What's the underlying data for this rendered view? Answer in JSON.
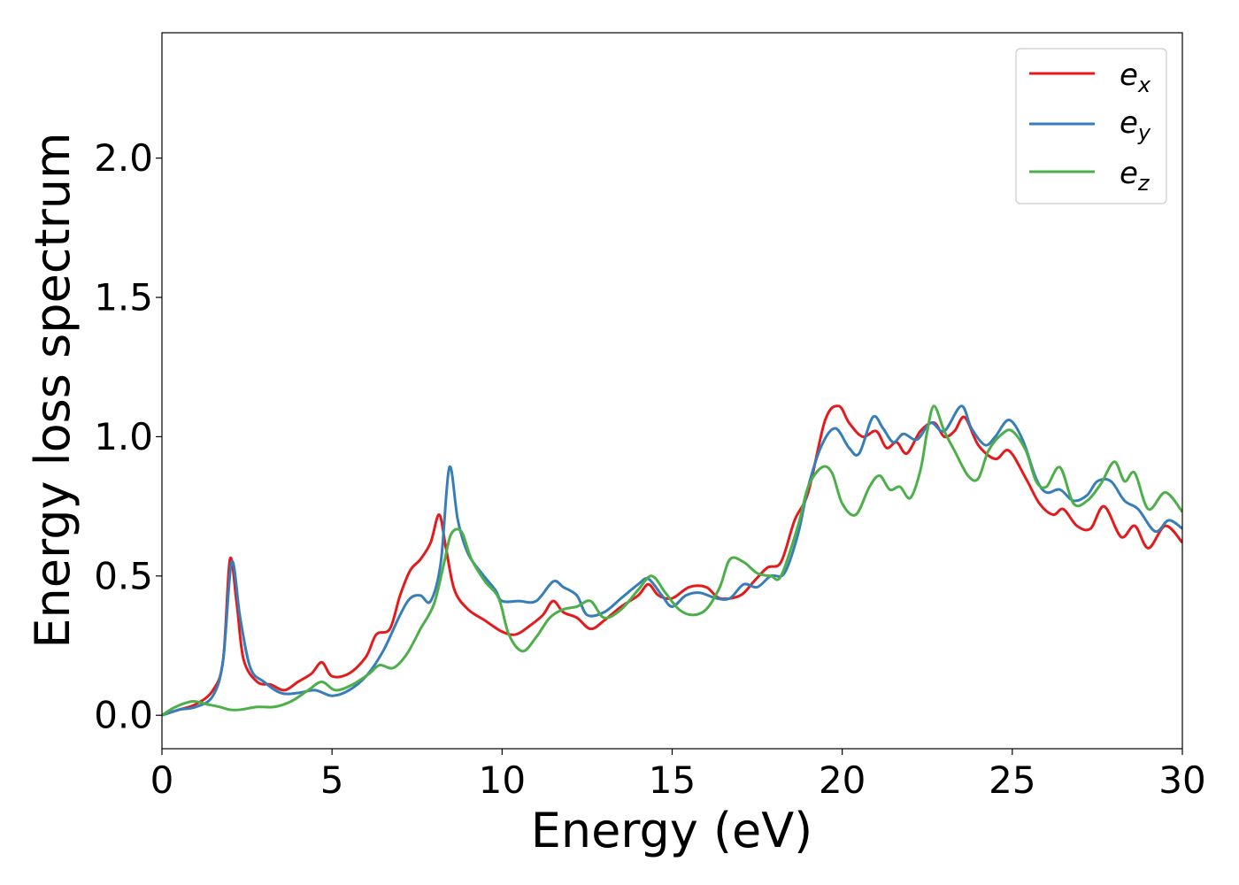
{
  "chart_data": {
    "type": "line",
    "title": "",
    "xlabel": "Energy (eV)",
    "ylabel": "Energy loss spectrum",
    "xlim": [
      0,
      30
    ],
    "ylim": [
      -0.12,
      2.45
    ],
    "xticks": [
      0,
      5,
      10,
      15,
      20,
      25,
      30
    ],
    "xtick_labels": [
      "0",
      "5",
      "10",
      "15",
      "20",
      "25",
      "30"
    ],
    "yticks": [
      0.0,
      0.5,
      1.0,
      1.5,
      2.0
    ],
    "ytick_labels": [
      "0.0",
      "0.5",
      "1.0",
      "1.5",
      "2.0"
    ],
    "grid": false,
    "legend_position": "top-right",
    "series": [
      {
        "name": "e_x",
        "legend_base": "e",
        "legend_sub": "x",
        "color": "#e41a1c",
        "points": [
          [
            0,
            0
          ],
          [
            0.5,
            0.02
          ],
          [
            1.0,
            0.04
          ],
          [
            1.5,
            0.09
          ],
          [
            1.8,
            0.2
          ],
          [
            2.0,
            0.56
          ],
          [
            2.2,
            0.4
          ],
          [
            2.4,
            0.2
          ],
          [
            2.8,
            0.12
          ],
          [
            3.2,
            0.11
          ],
          [
            3.6,
            0.09
          ],
          [
            4.0,
            0.12
          ],
          [
            4.4,
            0.15
          ],
          [
            4.7,
            0.19
          ],
          [
            5.0,
            0.14
          ],
          [
            5.5,
            0.15
          ],
          [
            6.0,
            0.21
          ],
          [
            6.3,
            0.29
          ],
          [
            6.7,
            0.31
          ],
          [
            7.0,
            0.43
          ],
          [
            7.3,
            0.52
          ],
          [
            7.6,
            0.56
          ],
          [
            7.9,
            0.62
          ],
          [
            8.15,
            0.72
          ],
          [
            8.35,
            0.6
          ],
          [
            8.6,
            0.45
          ],
          [
            9.0,
            0.38
          ],
          [
            9.5,
            0.34
          ],
          [
            10.0,
            0.3
          ],
          [
            10.4,
            0.29
          ],
          [
            10.8,
            0.32
          ],
          [
            11.2,
            0.36
          ],
          [
            11.5,
            0.41
          ],
          [
            11.8,
            0.37
          ],
          [
            12.2,
            0.35
          ],
          [
            12.6,
            0.31
          ],
          [
            13.0,
            0.34
          ],
          [
            13.5,
            0.39
          ],
          [
            14.0,
            0.43
          ],
          [
            14.3,
            0.47
          ],
          [
            14.6,
            0.43
          ],
          [
            15.0,
            0.42
          ],
          [
            15.5,
            0.46
          ],
          [
            16.0,
            0.46
          ],
          [
            16.4,
            0.42
          ],
          [
            17.0,
            0.43
          ],
          [
            17.4,
            0.48
          ],
          [
            17.8,
            0.53
          ],
          [
            18.2,
            0.55
          ],
          [
            18.6,
            0.7
          ],
          [
            19.0,
            0.8
          ],
          [
            19.5,
            1.06
          ],
          [
            19.9,
            1.11
          ],
          [
            20.2,
            1.05
          ],
          [
            20.6,
            1.0
          ],
          [
            21.0,
            1.02
          ],
          [
            21.3,
            0.96
          ],
          [
            21.6,
            0.98
          ],
          [
            21.9,
            0.94
          ],
          [
            22.3,
            1.02
          ],
          [
            22.7,
            1.05
          ],
          [
            23.0,
            1.0
          ],
          [
            23.3,
            1.02
          ],
          [
            23.6,
            1.07
          ],
          [
            24.0,
            0.97
          ],
          [
            24.5,
            0.92
          ],
          [
            24.9,
            0.95
          ],
          [
            25.4,
            0.85
          ],
          [
            25.8,
            0.76
          ],
          [
            26.2,
            0.72
          ],
          [
            26.5,
            0.74
          ],
          [
            26.9,
            0.68
          ],
          [
            27.3,
            0.67
          ],
          [
            27.7,
            0.75
          ],
          [
            28.2,
            0.64
          ],
          [
            28.6,
            0.68
          ],
          [
            29.0,
            0.6
          ],
          [
            29.5,
            0.68
          ],
          [
            30.0,
            0.62
          ]
        ]
      },
      {
        "name": "e_y",
        "legend_base": "e",
        "legend_sub": "y",
        "color": "#377eb8",
        "points": [
          [
            0,
            0
          ],
          [
            0.5,
            0.02
          ],
          [
            1.0,
            0.03
          ],
          [
            1.5,
            0.07
          ],
          [
            1.8,
            0.2
          ],
          [
            2.05,
            0.55
          ],
          [
            2.3,
            0.35
          ],
          [
            2.6,
            0.17
          ],
          [
            3.0,
            0.12
          ],
          [
            3.5,
            0.08
          ],
          [
            4.0,
            0.08
          ],
          [
            4.5,
            0.09
          ],
          [
            5.0,
            0.07
          ],
          [
            5.5,
            0.09
          ],
          [
            6.0,
            0.14
          ],
          [
            6.5,
            0.23
          ],
          [
            7.0,
            0.36
          ],
          [
            7.3,
            0.42
          ],
          [
            7.6,
            0.43
          ],
          [
            7.9,
            0.41
          ],
          [
            8.2,
            0.55
          ],
          [
            8.45,
            0.89
          ],
          [
            8.7,
            0.7
          ],
          [
            9.0,
            0.58
          ],
          [
            9.4,
            0.51
          ],
          [
            9.8,
            0.45
          ],
          [
            10.0,
            0.41
          ],
          [
            10.5,
            0.41
          ],
          [
            11.0,
            0.41
          ],
          [
            11.5,
            0.48
          ],
          [
            11.8,
            0.46
          ],
          [
            12.2,
            0.43
          ],
          [
            12.5,
            0.36
          ],
          [
            13.0,
            0.37
          ],
          [
            13.5,
            0.42
          ],
          [
            14.0,
            0.47
          ],
          [
            14.3,
            0.49
          ],
          [
            14.7,
            0.43
          ],
          [
            15.0,
            0.39
          ],
          [
            15.4,
            0.43
          ],
          [
            15.8,
            0.44
          ],
          [
            16.3,
            0.42
          ],
          [
            16.7,
            0.42
          ],
          [
            17.1,
            0.47
          ],
          [
            17.5,
            0.46
          ],
          [
            17.9,
            0.5
          ],
          [
            18.3,
            0.51
          ],
          [
            18.7,
            0.65
          ],
          [
            19.0,
            0.82
          ],
          [
            19.4,
            0.97
          ],
          [
            19.8,
            1.03
          ],
          [
            20.2,
            0.96
          ],
          [
            20.5,
            0.94
          ],
          [
            20.9,
            1.07
          ],
          [
            21.2,
            1.03
          ],
          [
            21.5,
            0.98
          ],
          [
            21.8,
            1.01
          ],
          [
            22.2,
            0.99
          ],
          [
            22.6,
            1.05
          ],
          [
            23.0,
            1.02
          ],
          [
            23.5,
            1.11
          ],
          [
            23.8,
            1.03
          ],
          [
            24.2,
            0.97
          ],
          [
            24.5,
            1.0
          ],
          [
            24.9,
            1.06
          ],
          [
            25.3,
            0.99
          ],
          [
            25.7,
            0.85
          ],
          [
            26.0,
            0.8
          ],
          [
            26.4,
            0.81
          ],
          [
            26.8,
            0.77
          ],
          [
            27.2,
            0.79
          ],
          [
            27.5,
            0.84
          ],
          [
            27.9,
            0.84
          ],
          [
            28.3,
            0.77
          ],
          [
            28.7,
            0.74
          ],
          [
            29.2,
            0.66
          ],
          [
            29.6,
            0.7
          ],
          [
            30.0,
            0.67
          ]
        ]
      },
      {
        "name": "e_z",
        "legend_base": "e",
        "legend_sub": "z",
        "color": "#4daf4a",
        "points": [
          [
            0,
            0
          ],
          [
            0.4,
            0.03
          ],
          [
            0.9,
            0.05
          ],
          [
            1.3,
            0.04
          ],
          [
            1.7,
            0.03
          ],
          [
            2.0,
            0.02
          ],
          [
            2.3,
            0.02
          ],
          [
            2.8,
            0.03
          ],
          [
            3.3,
            0.03
          ],
          [
            3.8,
            0.05
          ],
          [
            4.3,
            0.09
          ],
          [
            4.7,
            0.12
          ],
          [
            5.1,
            0.09
          ],
          [
            5.6,
            0.11
          ],
          [
            6.1,
            0.15
          ],
          [
            6.4,
            0.18
          ],
          [
            6.8,
            0.17
          ],
          [
            7.2,
            0.22
          ],
          [
            7.6,
            0.31
          ],
          [
            8.0,
            0.4
          ],
          [
            8.3,
            0.55
          ],
          [
            8.5,
            0.65
          ],
          [
            8.8,
            0.66
          ],
          [
            9.1,
            0.56
          ],
          [
            9.5,
            0.48
          ],
          [
            9.9,
            0.42
          ],
          [
            10.2,
            0.29
          ],
          [
            10.6,
            0.23
          ],
          [
            11.0,
            0.28
          ],
          [
            11.4,
            0.35
          ],
          [
            11.8,
            0.38
          ],
          [
            12.2,
            0.39
          ],
          [
            12.6,
            0.41
          ],
          [
            13.0,
            0.35
          ],
          [
            13.5,
            0.38
          ],
          [
            14.0,
            0.45
          ],
          [
            14.4,
            0.5
          ],
          [
            14.8,
            0.44
          ],
          [
            15.2,
            0.38
          ],
          [
            15.6,
            0.36
          ],
          [
            16.0,
            0.38
          ],
          [
            16.4,
            0.46
          ],
          [
            16.7,
            0.56
          ],
          [
            17.1,
            0.55
          ],
          [
            17.5,
            0.51
          ],
          [
            17.9,
            0.5
          ],
          [
            18.2,
            0.5
          ],
          [
            18.7,
            0.68
          ],
          [
            19.0,
            0.82
          ],
          [
            19.4,
            0.89
          ],
          [
            19.7,
            0.87
          ],
          [
            20.0,
            0.76
          ],
          [
            20.4,
            0.72
          ],
          [
            20.8,
            0.82
          ],
          [
            21.1,
            0.86
          ],
          [
            21.4,
            0.81
          ],
          [
            21.7,
            0.82
          ],
          [
            22.0,
            0.78
          ],
          [
            22.3,
            0.88
          ],
          [
            22.5,
            1.02
          ],
          [
            22.7,
            1.11
          ],
          [
            23.0,
            1.02
          ],
          [
            23.3,
            0.95
          ],
          [
            23.7,
            0.86
          ],
          [
            24.0,
            0.85
          ],
          [
            24.3,
            0.95
          ],
          [
            24.7,
            1.01
          ],
          [
            25.0,
            1.02
          ],
          [
            25.4,
            0.95
          ],
          [
            25.7,
            0.84
          ],
          [
            26.0,
            0.82
          ],
          [
            26.4,
            0.89
          ],
          [
            26.8,
            0.76
          ],
          [
            27.2,
            0.77
          ],
          [
            27.6,
            0.83
          ],
          [
            28.0,
            0.91
          ],
          [
            28.3,
            0.84
          ],
          [
            28.6,
            0.87
          ],
          [
            29.0,
            0.74
          ],
          [
            29.5,
            0.8
          ],
          [
            30.0,
            0.73
          ]
        ]
      }
    ]
  }
}
